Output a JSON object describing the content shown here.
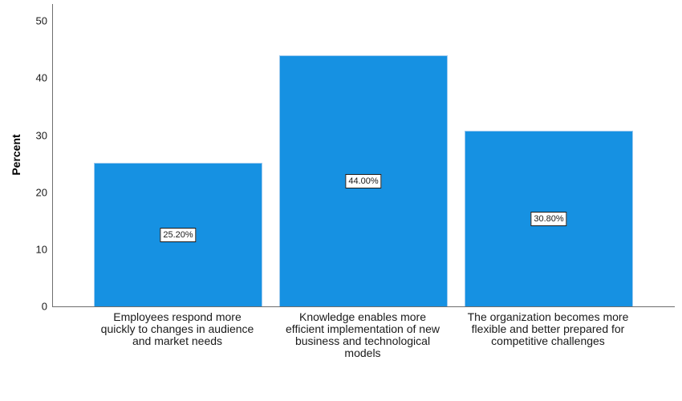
{
  "chart_data": {
    "type": "bar",
    "title": "",
    "xlabel": "",
    "ylabel": "Percent",
    "ylim": [
      0,
      53
    ],
    "yticks": [
      0,
      10,
      20,
      30,
      40,
      50
    ],
    "grid": false,
    "legend_position": "none",
    "categories": [
      "Employees respond more\nquickly to changes in audience\nand market needs",
      "Knowledge enables more\nefficient implementation of new\nbusiness and technological\nmodels",
      "The organization becomes more\nflexible and better prepared for\ncompetitive challenges"
    ],
    "values": [
      25.2,
      44.0,
      30.8
    ],
    "bar_labels": [
      "25.20%",
      "44.00%",
      "30.80%"
    ],
    "colors": {
      "bar": "#1691E2",
      "bar_border": "#9DC9EE",
      "axis": "#6E6E6E",
      "text": "#1A1A1A",
      "label_box_bg": "#FFFFFF",
      "label_box_border": "#1A1A1A"
    }
  }
}
